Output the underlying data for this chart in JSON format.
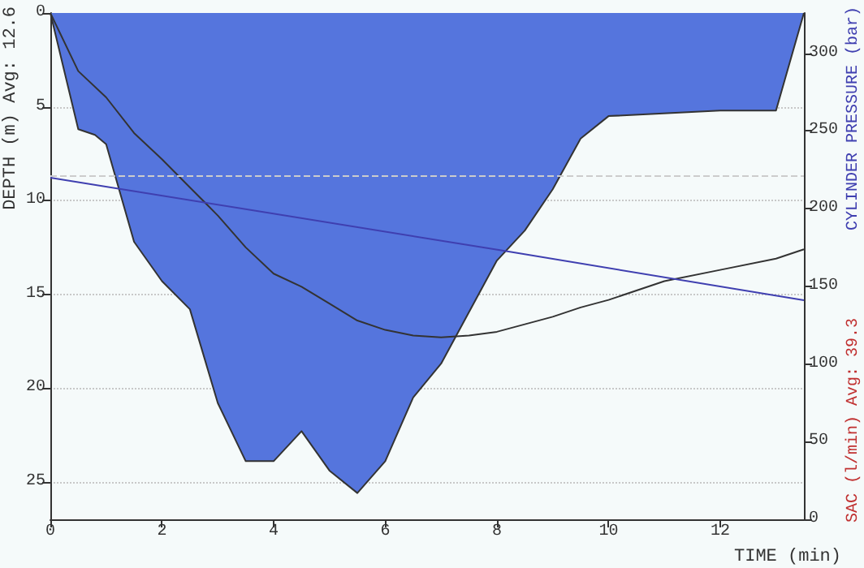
{
  "chart_data": {
    "type": "area",
    "xlabel": "TIME (min)",
    "ylabel": "DEPTH (m) Avg: 12.6",
    "y2label": "CYLINDER PRESSURE (bar)",
    "y3label": "SAC (l/min) Avg: 39.3",
    "xlim": [
      0,
      13.5
    ],
    "xticks": [
      0,
      2,
      4,
      6,
      8,
      10,
      12
    ],
    "ylim": [
      27,
      0
    ],
    "yticks": [
      0,
      5,
      10,
      15,
      20,
      25
    ],
    "y2lim": [
      0,
      326
    ],
    "y2ticks": [
      0,
      50,
      100,
      150,
      200,
      250,
      300
    ],
    "grid": "y",
    "ref_lines": [
      {
        "axis": "y2",
        "value": 221,
        "label": null,
        "color": "#cccccc",
        "line_style": "dashed"
      }
    ],
    "series": [
      {
        "color": "#5575dd",
        "x": [
          0,
          0.5,
          0.8,
          1.0,
          1.5,
          2.0,
          2.5,
          3.0,
          3.5,
          4.0,
          4.5,
          5.0,
          5.5,
          6.0,
          6.5,
          7.0,
          8.0,
          8.5,
          9.0,
          9.5,
          10.0,
          12.0,
          13.0,
          13.5
        ],
        "values": [
          0,
          6.2,
          6.5,
          7.0,
          12.2,
          14.3,
          15.8,
          20.8,
          23.9,
          23.9,
          22.3,
          24.4,
          25.6,
          23.9,
          20.5,
          18.7,
          13.2,
          11.6,
          9.4,
          6.7,
          5.5,
          5.2,
          5.2,
          0
        ]
      },
      {
        "type": "line",
        "color": "#333333",
        "x": [
          0,
          0.5,
          1.0,
          1.5,
          2.0,
          2.5,
          3.0,
          3.5,
          4.0,
          4.5,
          5.0,
          5.5,
          6.0,
          6.5,
          7.0,
          7.5,
          8.0,
          8.5,
          9.0,
          9.5,
          10.0,
          11.0,
          12.0,
          13.0,
          13.5
        ],
        "values": [
          0,
          3.1,
          4.5,
          6.4,
          7.8,
          9.3,
          10.8,
          12.5,
          13.9,
          14.6,
          15.5,
          16.4,
          16.9,
          17.2,
          17.3,
          17.2,
          17.0,
          16.6,
          16.2,
          15.7,
          15.3,
          14.3,
          13.7,
          13.1,
          12.6
        ]
      },
      {
        "type": "line",
        "axis": "y2",
        "color": "#3f3fb0",
        "x": [
          0,
          8.1,
          13.5
        ],
        "values": [
          220,
          173,
          141
        ]
      }
    ]
  }
}
